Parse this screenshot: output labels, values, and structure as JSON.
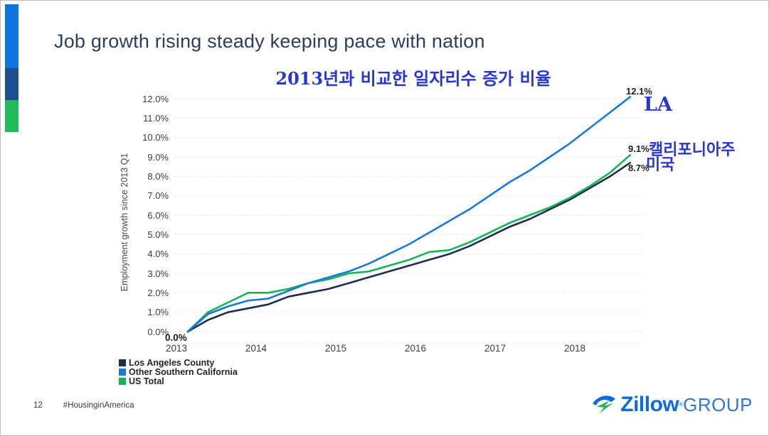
{
  "slide": {
    "title": "Job growth rising steady keeping pace with nation",
    "page_number": "12",
    "hashtag": "#HousinginAmerica"
  },
  "annotations": {
    "chart_title_korean": "2013년과 비교한 일자리수 증가 비율",
    "la_label": "LA",
    "california_korean": "캘리포니아주",
    "us_korean": "미국",
    "ink_color": "#2836d8"
  },
  "logo": {
    "brand": "Zillow",
    "registered": "®",
    "suffix": "GROUP",
    "blue": "#0d6bdb",
    "green": "#26b15c"
  },
  "accent_bar_colors": [
    "#0b76e0",
    "#1c4e92",
    "#1fbb59"
  ],
  "chart_data": {
    "type": "line",
    "ylabel": "Employment growth since 2013 Q1",
    "ylim": [
      0,
      12
    ],
    "grid": "dotted horizontal at every 1.0%",
    "legend_position": "bottom-left",
    "x_span": "quarterly, 2013 Q1 to 2018 Q3",
    "x_tick_labels": [
      "2013",
      "2014",
      "2015",
      "2016",
      "2017",
      "2018"
    ],
    "y_tick_labels": [
      "0.0%",
      "1.0%",
      "2.0%",
      "3.0%",
      "4.0%",
      "5.0%",
      "6.0%",
      "7.0%",
      "8.0%",
      "9.0%",
      "10.0%",
      "11.0%",
      "12.0%"
    ],
    "start_label": "0.0%",
    "series": [
      {
        "name": "Los Angeles County",
        "color": "#1b2e52",
        "end_label": "8.7%",
        "values": [
          0.0,
          0.6,
          1.0,
          1.2,
          1.4,
          1.8,
          2.0,
          2.2,
          2.5,
          2.8,
          3.1,
          3.4,
          3.7,
          4.0,
          4.4,
          4.9,
          5.4,
          5.8,
          6.3,
          6.8,
          7.4,
          8.0,
          8.7
        ]
      },
      {
        "name": "Other Southern California",
        "color": "#1779dd",
        "end_label": "12.1%",
        "values": [
          0.0,
          0.9,
          1.3,
          1.6,
          1.7,
          2.1,
          2.5,
          2.8,
          3.1,
          3.5,
          4.0,
          4.5,
          5.1,
          5.7,
          6.3,
          7.0,
          7.7,
          8.3,
          9.0,
          9.7,
          10.5,
          11.3,
          12.1
        ]
      },
      {
        "name": "US Total",
        "color": "#15b454",
        "end_label": "9.1%",
        "values": [
          0.0,
          1.0,
          1.5,
          2.0,
          2.0,
          2.2,
          2.5,
          2.7,
          3.0,
          3.1,
          3.4,
          3.7,
          4.1,
          4.2,
          4.6,
          5.1,
          5.6,
          6.0,
          6.4,
          6.9,
          7.5,
          8.2,
          9.1
        ]
      }
    ]
  }
}
